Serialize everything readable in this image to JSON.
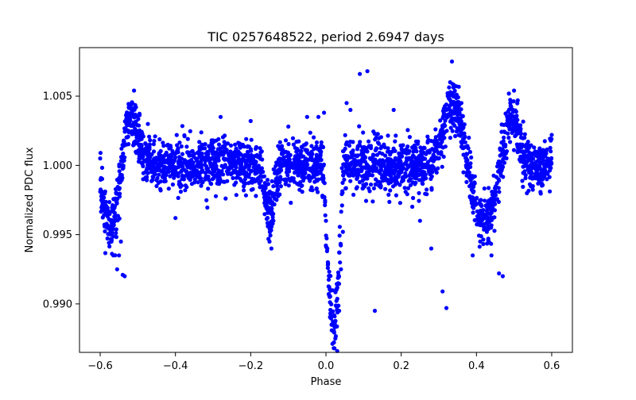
{
  "chart_data": {
    "type": "scatter",
    "title": "TIC 0257648522, period 2.6947 days",
    "xlabel": "Phase",
    "ylabel": "Normalized PDC flux",
    "xlim": [
      -0.655,
      0.655
    ],
    "ylim": [
      0.9865,
      1.0085
    ],
    "xticks": [
      -0.6,
      -0.4,
      -0.2,
      0.0,
      0.2,
      0.4,
      0.6
    ],
    "xtick_labels": [
      "−0.6",
      "−0.4",
      "−0.2",
      "0.0",
      "0.2",
      "0.4",
      "0.6"
    ],
    "yticks": [
      0.99,
      0.995,
      1.0,
      1.005
    ],
    "ytick_labels": [
      "0.990",
      "0.995",
      "1.000",
      "1.005"
    ],
    "grid": false,
    "point_color": "#0000ff",
    "series": [
      {
        "name": "PDC flux",
        "features": {
          "phase_range": [
            -0.6,
            0.6
          ],
          "baseline_flux": 1.0,
          "scatter_sigma": 0.0009,
          "primary_transit": {
            "center": 0.02,
            "half_width": 0.025,
            "min_flux": 0.9866
          },
          "dips": [
            {
              "center": -0.57,
              "depth": 0.0045,
              "width": 0.02
            },
            {
              "center": -0.15,
              "depth": 0.0035,
              "width": 0.012
            },
            {
              "center": 0.42,
              "depth": 0.0042,
              "width": 0.03
            }
          ],
          "bumps": [
            {
              "center": -0.52,
              "height": 0.0035,
              "width": 0.02
            },
            {
              "center": 0.34,
              "height": 0.0045,
              "width": 0.025
            },
            {
              "center": 0.49,
              "height": 0.0035,
              "width": 0.02
            }
          ]
        },
        "points": [
          [
            -0.6,
            1.0005
          ],
          [
            -0.58,
            0.9965
          ],
          [
            -0.575,
            0.9955
          ],
          [
            -0.57,
            0.9945
          ],
          [
            -0.565,
            0.9935
          ],
          [
            -0.555,
            0.9925
          ],
          [
            -0.55,
            0.9935
          ],
          [
            -0.545,
            0.9945
          ],
          [
            -0.54,
            0.9921
          ],
          [
            -0.535,
            0.992
          ],
          [
            -0.53,
            1.0015
          ],
          [
            -0.525,
            1.0025
          ],
          [
            -0.52,
            1.0035
          ],
          [
            -0.515,
            1.0045
          ],
          [
            -0.51,
            1.0054
          ],
          [
            -0.505,
            1.0042
          ],
          [
            -0.5,
            1.0022
          ],
          [
            -0.48,
            1.0012
          ],
          [
            -0.45,
            0.9985
          ],
          [
            -0.4,
            0.9962
          ],
          [
            -0.3,
            1.0018
          ],
          [
            -0.28,
            1.0035
          ],
          [
            -0.2,
            1.0032
          ],
          [
            -0.16,
            0.9975
          ],
          [
            -0.155,
            0.9962
          ],
          [
            -0.15,
            0.9945
          ],
          [
            -0.145,
            0.994
          ],
          [
            -0.14,
            0.9965
          ],
          [
            -0.13,
            0.9985
          ],
          [
            -0.1,
            1.0028
          ],
          [
            -0.05,
            1.0035
          ],
          [
            -0.02,
            1.0035
          ],
          [
            -0.005,
            1.0038
          ],
          [
            0.0,
            0.996
          ],
          [
            0.005,
            0.993
          ],
          [
            0.01,
            0.9905
          ],
          [
            0.015,
            0.9885
          ],
          [
            0.02,
            0.988
          ],
          [
            0.025,
            0.9875
          ],
          [
            0.03,
            0.9866
          ],
          [
            0.035,
            0.9895
          ],
          [
            0.04,
            0.9925
          ],
          [
            0.045,
            0.9952
          ],
          [
            0.055,
            1.0045
          ],
          [
            0.065,
            1.004
          ],
          [
            0.09,
            1.0066
          ],
          [
            0.11,
            1.0068
          ],
          [
            0.13,
            0.9895
          ],
          [
            0.18,
            1.004
          ],
          [
            0.25,
            0.996
          ],
          [
            0.28,
            0.994
          ],
          [
            0.31,
            0.9909
          ],
          [
            0.32,
            0.9897
          ],
          [
            0.33,
            1.006
          ],
          [
            0.335,
            1.0075
          ],
          [
            0.34,
            1.0058
          ],
          [
            0.36,
            1.0045
          ],
          [
            0.38,
            1.002
          ],
          [
            0.39,
            0.9935
          ],
          [
            0.41,
            0.9945
          ],
          [
            0.43,
            0.9955
          ],
          [
            0.44,
            0.9935
          ],
          [
            0.46,
            0.9922
          ],
          [
            0.47,
            0.992
          ],
          [
            0.48,
            1.003
          ],
          [
            0.49,
            1.0045
          ],
          [
            0.5,
            1.0054
          ],
          [
            0.52,
            1.002
          ],
          [
            0.55,
            0.9985
          ],
          [
            0.6,
            1.0022
          ]
        ]
      }
    ]
  }
}
